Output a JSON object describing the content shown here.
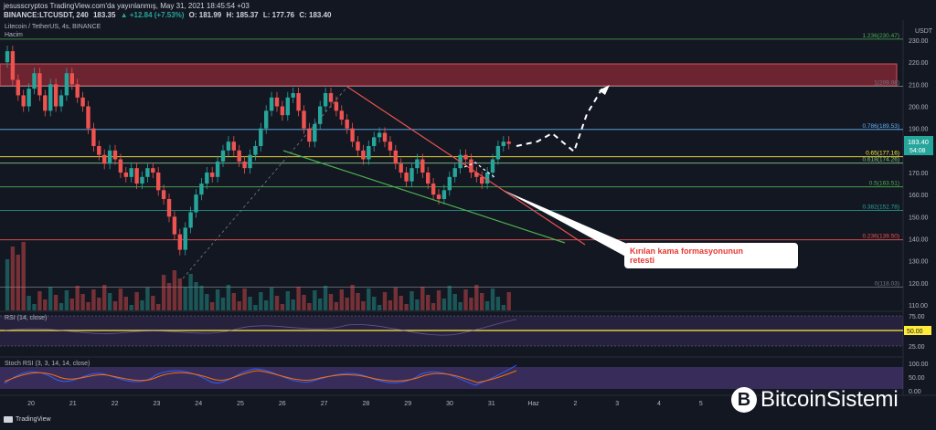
{
  "header": {
    "publisher": "jesusscryptos TradingView.com'da yayınlanmış, May 31, 2021 18:45:54 +03",
    "symbol": "BINANCE:LTCUSDT, 240",
    "last": "183.35",
    "change": "▲ +12.84 (+7.53%)",
    "open": "O: 181.99",
    "high": "H: 185.37",
    "low": "L: 177.76",
    "close": "C: 183.40"
  },
  "legend": {
    "title": "Litecoin / TetherUS, 4s, BINANCE",
    "volume": "Hacim"
  },
  "price_axis": {
    "unit": "USDT",
    "ticks": [
      "230.00",
      "220.00",
      "210.00",
      "200.00",
      "190.00",
      "180.00",
      "170.00",
      "160.00",
      "150.00",
      "140.00",
      "130.00",
      "120.00",
      "110.00"
    ],
    "current_price": "183.40",
    "countdown": "54:08"
  },
  "fib_levels": [
    {
      "label": "1.236(230.47)",
      "price": 230.47,
      "color": "#4caf50"
    },
    {
      "label": "1(209.08)",
      "price": 209.08,
      "color": "#787b86"
    },
    {
      "label": "0.786(189.53)",
      "price": 189.53,
      "color": "#64b5f6"
    },
    {
      "label": "0.65(177.16)",
      "price": 177.16,
      "color": "#ffeb3b"
    },
    {
      "label": "0.618(174.26)",
      "price": 174.26,
      "color": "#81c784"
    },
    {
      "label": "0.5(163.51)",
      "price": 163.51,
      "color": "#4caf50"
    },
    {
      "label": "0.382(152.78)",
      "price": 152.78,
      "color": "#26a69a"
    },
    {
      "label": "0.236(139.50)",
      "price": 139.5,
      "color": "#ef5350"
    },
    {
      "label": "0(118.03)",
      "price": 118.03,
      "color": "#787b86"
    }
  ],
  "time_axis": [
    "20",
    "21",
    "22",
    "23",
    "24",
    "25",
    "26",
    "27",
    "28",
    "29",
    "30",
    "31",
    "Haz",
    "2",
    "3",
    "4",
    "5",
    "6"
  ],
  "rsi": {
    "title": "RSI (14, close)",
    "ticks": [
      "75.00",
      "50.00",
      "25.00"
    ],
    "value": "50.00"
  },
  "stoch": {
    "title": "Stoch RSI (3, 3, 14, 14, close)",
    "ticks": [
      "100.00",
      "50.00",
      "0.00"
    ]
  },
  "annotation": {
    "line1": "Kırılan kama formasyonunun",
    "line2": "retesti"
  },
  "branding": {
    "tradingview": "TradingView",
    "site": "BitcoinSistemi",
    "site_icon": "B"
  },
  "colors": {
    "bull": "#26a69a",
    "bear": "#ef5350",
    "background": "#131722",
    "resistance_zone": "#8b2a35",
    "stoch_k": "#2962ff",
    "stoch_d": "#ff6d00"
  }
}
